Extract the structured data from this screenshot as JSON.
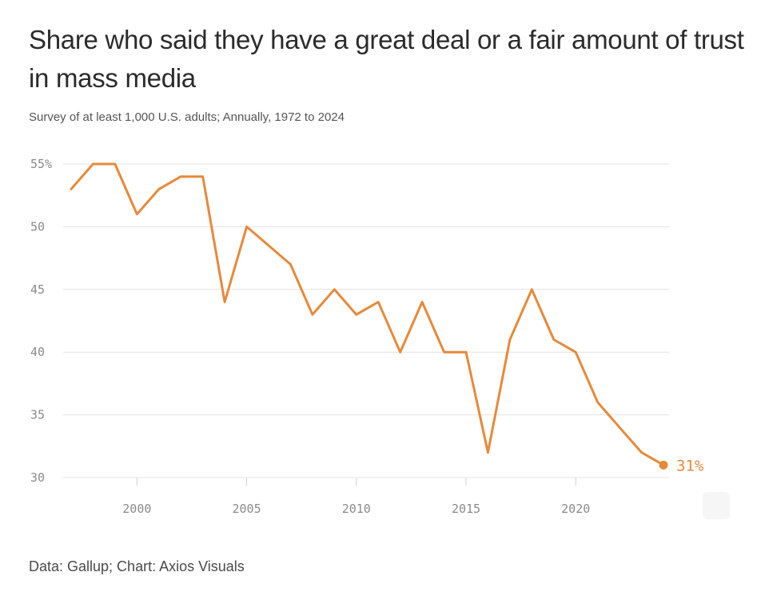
{
  "chart_data": {
    "type": "line",
    "title": "Share who said they have a great deal or a fair amount of trust in mass media",
    "subtitle": "Survey of at least 1,000 U.S. adults; Annually, 1972 to 2024",
    "source": "Data: Gallup; Chart: Axios Visuals",
    "xlabel": "",
    "ylabel": "",
    "xlim": [
      1997,
      2024
    ],
    "ylim": [
      30,
      55
    ],
    "grid": true,
    "y_ticks": [
      {
        "value": 55,
        "label": "55%"
      },
      {
        "value": 50,
        "label": "50"
      },
      {
        "value": 45,
        "label": "45"
      },
      {
        "value": 40,
        "label": "40"
      },
      {
        "value": 35,
        "label": "35"
      },
      {
        "value": 30,
        "label": "30"
      }
    ],
    "x_ticks": [
      {
        "value": 2000,
        "label": "2000"
      },
      {
        "value": 2005,
        "label": "2005"
      },
      {
        "value": 2010,
        "label": "2010"
      },
      {
        "value": 2015,
        "label": "2015"
      },
      {
        "value": 2020,
        "label": "2020"
      }
    ],
    "series": [
      {
        "color": "#E8893A",
        "x": [
          1997,
          1998,
          1999,
          2000,
          2001,
          2002,
          2003,
          2004,
          2005,
          2006,
          2007,
          2008,
          2009,
          2010,
          2011,
          2012,
          2013,
          2014,
          2015,
          2016,
          2017,
          2018,
          2019,
          2020,
          2021,
          2022,
          2023,
          2024
        ],
        "values": [
          53,
          55,
          55,
          51,
          53,
          54,
          54,
          44,
          50,
          48.5,
          47,
          43,
          45,
          43,
          44,
          40,
          44,
          40,
          40,
          32,
          41,
          45,
          41,
          40,
          36,
          34,
          32,
          31
        ]
      }
    ],
    "annotations": [
      {
        "x": 2024,
        "y": 31,
        "label": "31%"
      }
    ]
  }
}
